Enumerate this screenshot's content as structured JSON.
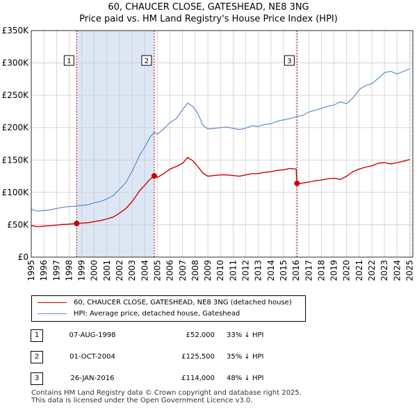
{
  "title_line1": "60, CHAUCER CLOSE, GATESHEAD, NE8 3NG",
  "title_line2": "Price paid vs. HM Land Registry's House Price Index (HPI)",
  "chart_data": {
    "type": "line",
    "xlim": [
      1995.0,
      2025.25
    ],
    "ylim": [
      0,
      350000
    ],
    "y_ticks": [
      0,
      50000,
      100000,
      150000,
      200000,
      250000,
      300000,
      350000
    ],
    "y_tick_labels": [
      "£0",
      "£50K",
      "£100K",
      "£150K",
      "£200K",
      "£250K",
      "£300K",
      "£350K"
    ],
    "x_ticks": [
      1995,
      1996,
      1997,
      1998,
      1999,
      2000,
      2001,
      2002,
      2003,
      2004,
      2005,
      2006,
      2007,
      2008,
      2009,
      2010,
      2011,
      2012,
      2013,
      2014,
      2015,
      2016,
      2017,
      2018,
      2019,
      2020,
      2021,
      2022,
      2023,
      2024,
      2025
    ],
    "colors": {
      "property": "#cc0000",
      "hpi": "#5b8cc8",
      "band": "#dde6f5",
      "sale_line": "#cc0000",
      "grid": "#cccccc"
    },
    "series": [
      {
        "name": "HPI: Average price, detached house, Gateshead",
        "key": "hpi",
        "x": [
          1995.0,
          1995.5,
          1996.0,
          1996.5,
          1997.0,
          1997.5,
          1998.0,
          1998.6,
          1999.0,
          1999.5,
          2000.0,
          2000.5,
          2001.0,
          2001.5,
          2002.0,
          2002.5,
          2003.0,
          2003.3,
          2003.6,
          2004.0,
          2004.4,
          2004.75,
          2005.0,
          2005.5,
          2006.0,
          2006.5,
          2007.0,
          2007.4,
          2007.8,
          2008.2,
          2008.6,
          2009.0,
          2009.5,
          2010.0,
          2010.5,
          2011.0,
          2011.5,
          2012.0,
          2012.5,
          2013.0,
          2013.5,
          2014.0,
          2014.5,
          2015.0,
          2015.5,
          2016.0,
          2016.5,
          2017.0,
          2017.5,
          2018.0,
          2018.5,
          2019.0,
          2019.5,
          2020.0,
          2020.5,
          2021.0,
          2021.5,
          2022.0,
          2022.5,
          2023.0,
          2023.5,
          2024.0,
          2024.5,
          2025.0
        ],
        "y": [
          74000,
          71000,
          72000,
          73000,
          75000,
          77000,
          78000,
          79000,
          80000,
          81000,
          84000,
          86000,
          90000,
          95000,
          105000,
          115000,
          133000,
          145000,
          158000,
          170000,
          185000,
          193000,
          190000,
          198000,
          208000,
          214000,
          228000,
          238000,
          233000,
          222000,
          204000,
          198000,
          199000,
          200000,
          201000,
          199000,
          197000,
          199000,
          203000,
          202000,
          205000,
          206000,
          210000,
          212000,
          214000,
          217000,
          219000,
          224000,
          227000,
          230000,
          233000,
          235000,
          240000,
          237000,
          246000,
          259000,
          265000,
          268000,
          276000,
          285000,
          287000,
          283000,
          287000,
          291000
        ]
      },
      {
        "name": "60, CHAUCER CLOSE, GATESHEAD, NE8 3NG (detached house)",
        "key": "property",
        "x": [
          1995.0,
          1995.5,
          1996.0,
          1996.5,
          1997.0,
          1997.5,
          1998.0,
          1998.6,
          1999.0,
          1999.5,
          2000.0,
          2000.5,
          2001.0,
          2001.5,
          2002.0,
          2002.5,
          2003.0,
          2003.3,
          2003.6,
          2004.0,
          2004.4,
          2004.75,
          2004.8,
          2005.0,
          2005.5,
          2006.0,
          2006.5,
          2007.0,
          2007.4,
          2007.8,
          2008.2,
          2008.6,
          2009.0,
          2009.5,
          2010.0,
          2010.5,
          2011.0,
          2011.5,
          2012.0,
          2012.5,
          2013.0,
          2013.5,
          2014.0,
          2014.5,
          2015.0,
          2015.5,
          2016.0,
          2016.07,
          2016.1,
          2016.5,
          2017.0,
          2017.5,
          2018.0,
          2018.5,
          2019.0,
          2019.5,
          2020.0,
          2020.5,
          2021.0,
          2021.5,
          2022.0,
          2022.5,
          2023.0,
          2023.5,
          2024.0,
          2024.5,
          2025.0
        ],
        "y": [
          49000,
          47000,
          48000,
          48500,
          49500,
          50500,
          51000,
          52000,
          52500,
          53000,
          55000,
          56500,
          59000,
          62000,
          68000,
          75000,
          86000,
          94000,
          103000,
          111000,
          120000,
          125500,
          125000,
          123000,
          129000,
          136000,
          140000,
          145000,
          154000,
          149000,
          140000,
          130000,
          125000,
          126000,
          127000,
          127000,
          126000,
          125000,
          127000,
          129000,
          129000,
          131000,
          132000,
          134000,
          135000,
          137000,
          136000,
          114000,
          113000,
          114500,
          116000,
          118000,
          119000,
          121000,
          122000,
          120000,
          125000,
          132000,
          136000,
          139000,
          141000,
          145000,
          146000,
          144000,
          146000,
          148000,
          151000
        ]
      }
    ],
    "sales": [
      {
        "label": "1",
        "x": 1998.6,
        "y": 52000
      },
      {
        "label": "2",
        "x": 2004.75,
        "y": 125500
      },
      {
        "label": "3",
        "x": 2016.07,
        "y": 114000
      }
    ],
    "bands": [
      [
        1998.6,
        2004.75
      ]
    ],
    "hatch_start": 2025.0
  },
  "legend": {
    "property_label": "60, CHAUCER CLOSE, GATESHEAD, NE8 3NG (detached house)",
    "hpi_label": "HPI: Average price, detached house, Gateshead"
  },
  "transactions": [
    {
      "num": "1",
      "date": "07-AUG-1998",
      "price": "£52,000",
      "hpi": "33% ↓ HPI"
    },
    {
      "num": "2",
      "date": "01-OCT-2004",
      "price": "£125,500",
      "hpi": "35% ↓ HPI"
    },
    {
      "num": "3",
      "date": "26-JAN-2016",
      "price": "£114,000",
      "hpi": "48% ↓ HPI"
    }
  ],
  "footer": {
    "line1": "Contains HM Land Registry data © Crown copyright and database right 2025.",
    "line2": "This data is licensed under the Open Government Licence v3.0."
  }
}
